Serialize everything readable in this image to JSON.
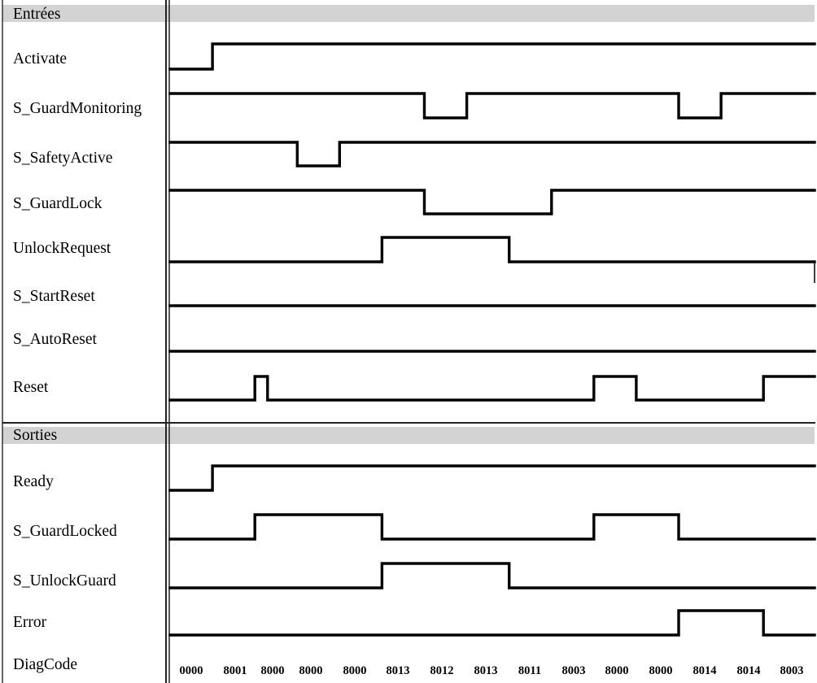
{
  "sections": [
    {
      "title": "Entrées",
      "signals": [
        {
          "name": "Activate",
          "initial": 0,
          "changes": [
            1
          ]
        },
        {
          "name": "S_GuardMonitoring",
          "initial": 1,
          "changes": [
            6,
            7,
            12,
            13
          ]
        },
        {
          "name": "S_SafetyActive",
          "initial": 1,
          "changes": [
            3,
            4
          ]
        },
        {
          "name": "S_GuardLock",
          "initial": 1,
          "changes": [
            6,
            9
          ]
        },
        {
          "name": "UnlockRequest",
          "initial": 0,
          "changes": [
            5,
            8
          ]
        },
        {
          "name": "S_StartReset",
          "initial": 0,
          "changes": []
        },
        {
          "name": "S_AutoReset",
          "initial": 0,
          "changes": []
        },
        {
          "name": "Reset",
          "initial": 0,
          "changes": [
            2,
            2.3,
            10,
            11,
            14
          ]
        }
      ]
    },
    {
      "title": "Sorties",
      "signals": [
        {
          "name": "Ready",
          "initial": 0,
          "changes": [
            1
          ]
        },
        {
          "name": "S_GuardLocked",
          "initial": 0,
          "changes": [
            2,
            5,
            10,
            12
          ]
        },
        {
          "name": "S_UnlockGuard",
          "initial": 0,
          "changes": [
            5,
            8
          ]
        },
        {
          "name": "Error",
          "initial": 0,
          "changes": [
            12,
            14
          ]
        }
      ]
    }
  ],
  "diag_code": {
    "name": "DiagCode",
    "values": [
      "0000",
      "8001",
      "8000",
      "8000",
      "8000",
      "8013",
      "8012",
      "8013",
      "8011",
      "8003",
      "8000",
      "8000",
      "8014",
      "8014",
      "8003"
    ]
  }
}
